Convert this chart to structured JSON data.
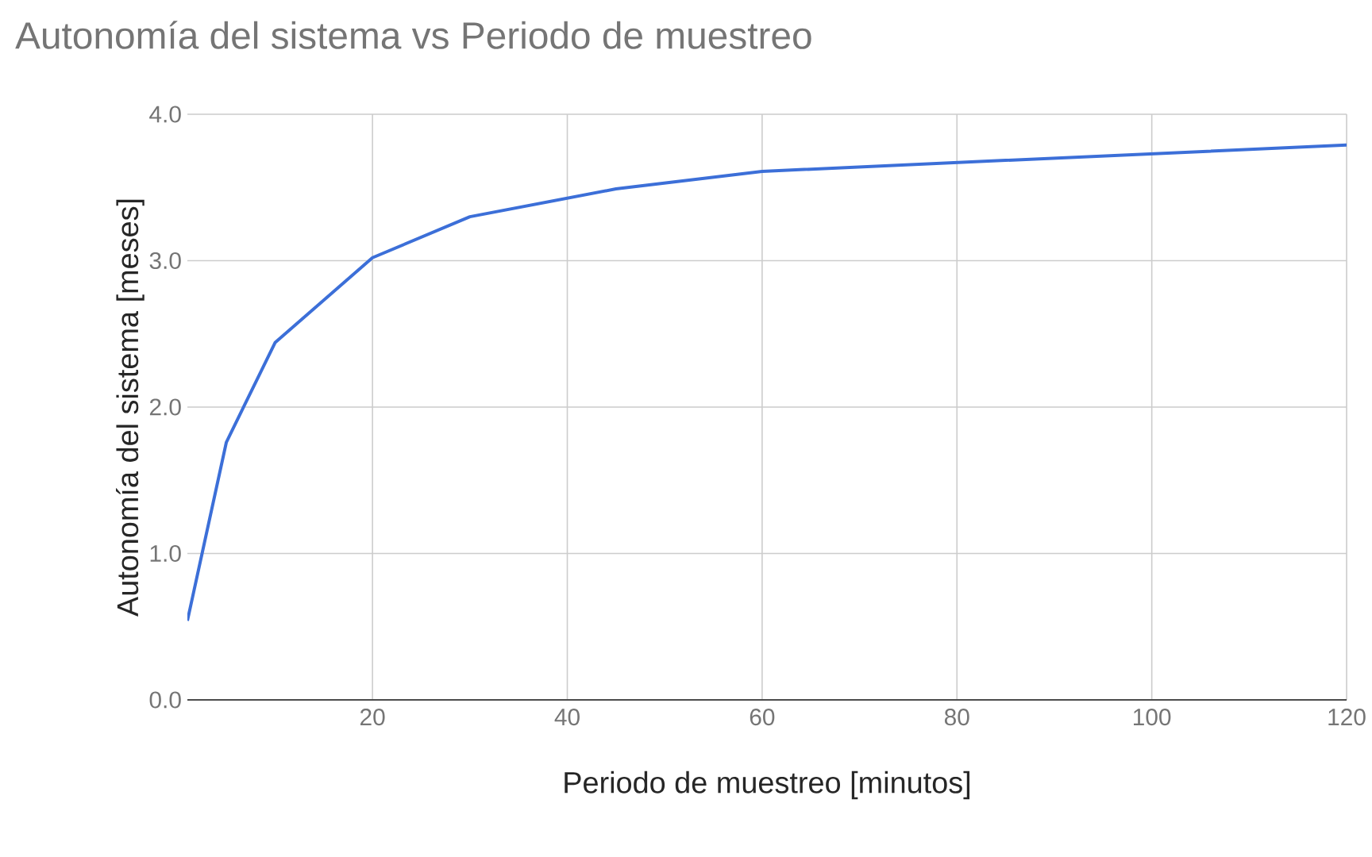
{
  "chart_data": {
    "type": "line",
    "title": "Autonomía del sistema vs Periodo de muestreo",
    "xlabel": "Periodo de muestreo [minutos]",
    "ylabel": "Autonomía del sistema [meses]",
    "x": [
      1,
      5,
      10,
      20,
      30,
      45,
      60,
      120
    ],
    "series": [
      {
        "color": "#3c6fd8",
        "values": [
          0.54,
          1.76,
          2.44,
          3.02,
          3.3,
          3.49,
          3.61,
          3.79
        ]
      }
    ],
    "xlim": [
      1,
      120
    ],
    "xticks": [
      20,
      40,
      60,
      80,
      100,
      120
    ],
    "ylim": [
      0,
      4
    ],
    "yticks": [
      {
        "value": 0,
        "label": "0.0"
      },
      {
        "value": 1,
        "label": "1.0"
      },
      {
        "value": 2,
        "label": "2.0"
      },
      {
        "value": 3,
        "label": "3.0"
      },
      {
        "value": 4,
        "label": "4.0"
      }
    ],
    "grid": true,
    "legend": false,
    "marker": "none",
    "line_style": "solid"
  }
}
